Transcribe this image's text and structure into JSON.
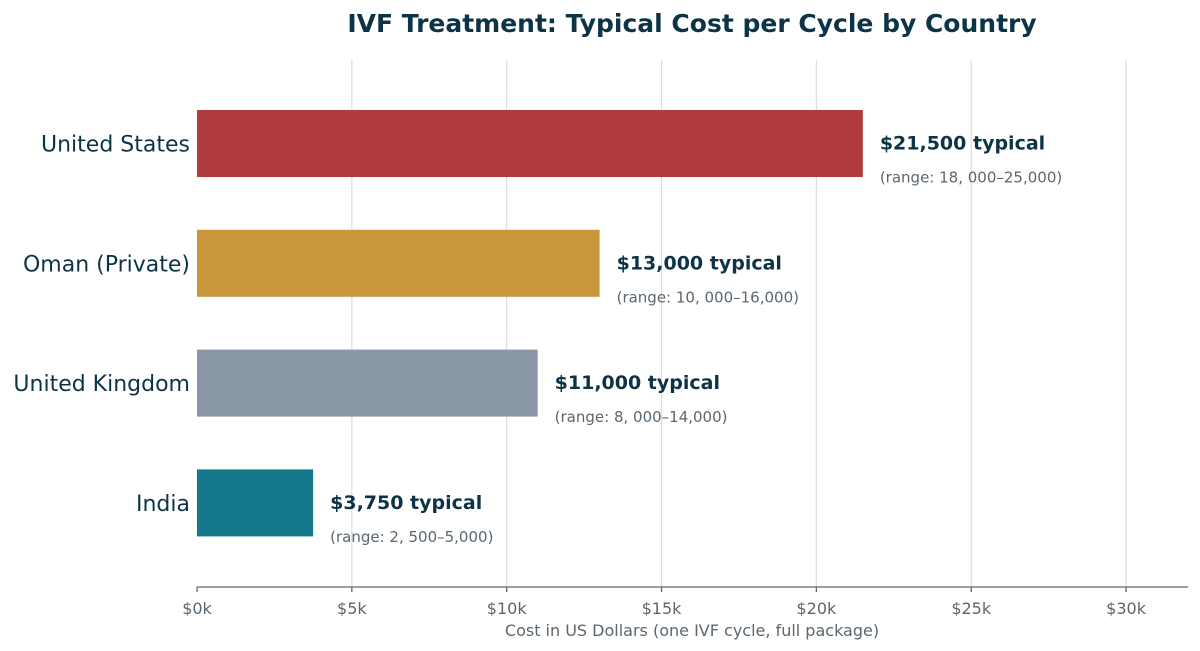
{
  "chart_data": {
    "type": "bar",
    "orientation": "horizontal",
    "title": "IVF Treatment: Typical Cost per Cycle by Country",
    "xlabel": "Cost in US Dollars (one IVF cycle, full package)",
    "ylabel": "",
    "xlim": [
      0,
      32000
    ],
    "grid": "vertical",
    "x_ticks": [
      0,
      5000,
      10000,
      15000,
      20000,
      25000,
      30000
    ],
    "x_tick_labels": [
      "$0k",
      "$5k",
      "$10k",
      "$15k",
      "$20k",
      "$25k",
      "$30k"
    ],
    "categories": [
      "United States",
      "Oman (Private)",
      "United Kingdom",
      "India"
    ],
    "values": [
      21500,
      13000,
      11000,
      3750
    ],
    "value_labels": [
      "$21,500 typical",
      "$13,000 typical",
      "$11,000 typical",
      "$3,750 typical"
    ],
    "range_labels": [
      "(range: 18, 000–25,000)",
      "(range: 10, 000–16,000)",
      "(range: 8, 000–14,000)",
      "(range: 2, 500–5,000)"
    ],
    "colors": [
      "#b13c3f",
      "#c8963b",
      "#8a97a6",
      "#15788a"
    ]
  }
}
